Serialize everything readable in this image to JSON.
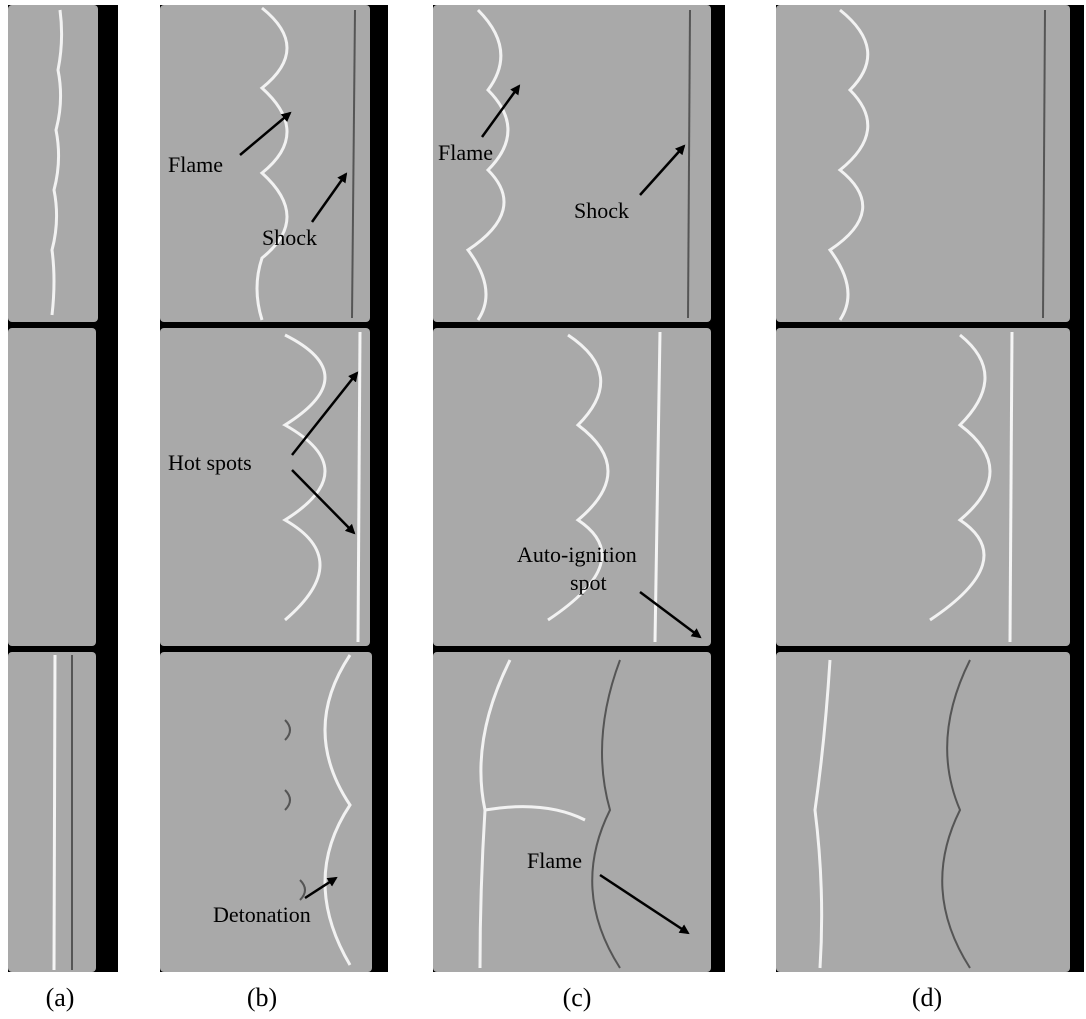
{
  "panels": {
    "labels": [
      "(a)",
      "(b)",
      "(c)",
      "(d)"
    ]
  },
  "annotations": [
    {
      "text": "Flame"
    },
    {
      "text": "Shock"
    },
    {
      "text": "Hot spots"
    },
    {
      "text": "Detonation"
    },
    {
      "text": "Flame"
    },
    {
      "text": "Shock"
    },
    {
      "text": [
        "Auto-ignition",
        "spot"
      ]
    },
    {
      "text": "Flame"
    }
  ]
}
